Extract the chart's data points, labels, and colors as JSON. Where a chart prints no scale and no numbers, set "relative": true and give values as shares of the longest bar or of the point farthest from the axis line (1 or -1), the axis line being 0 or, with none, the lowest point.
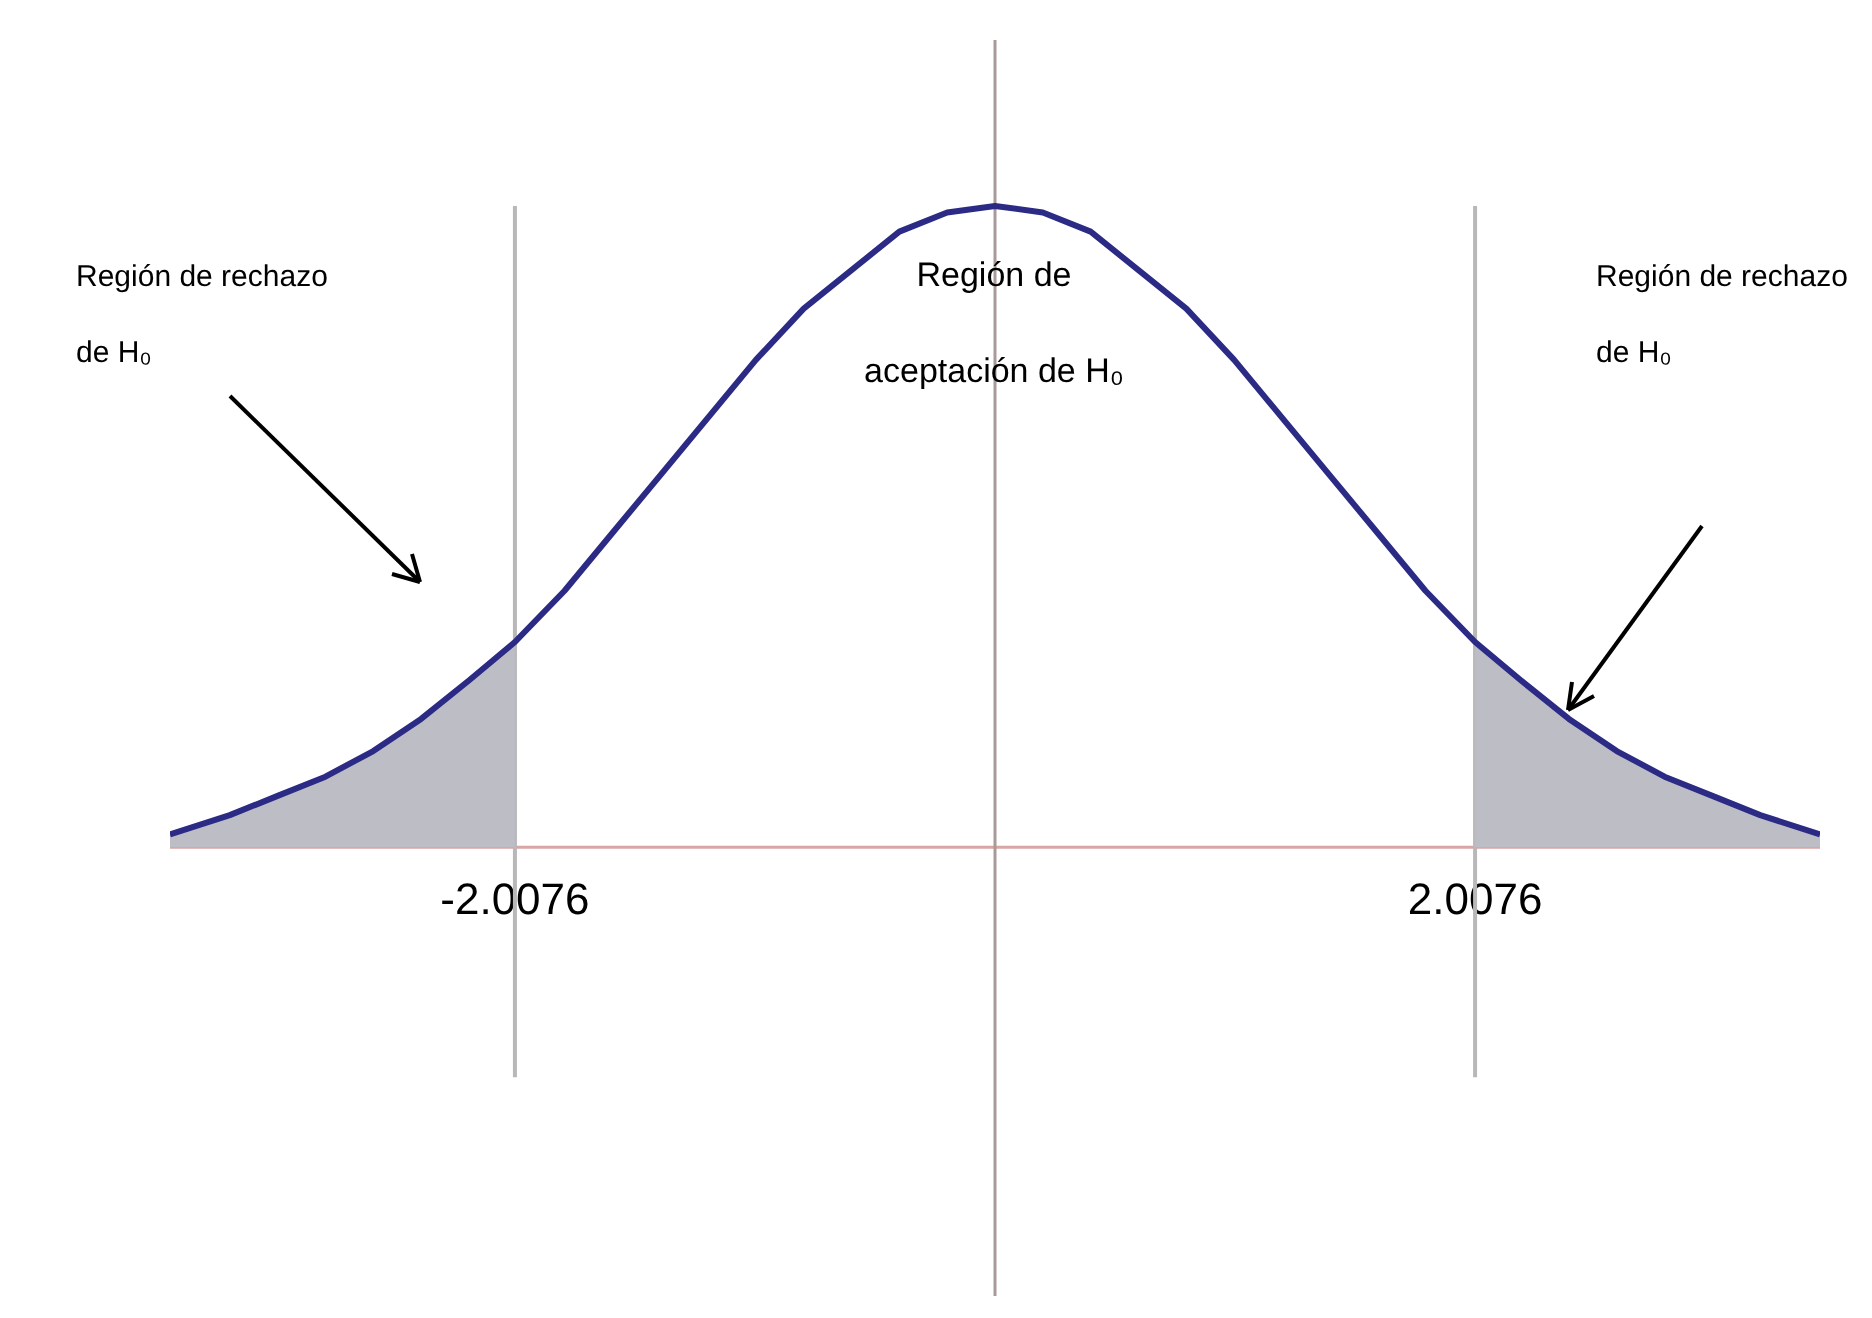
{
  "chart_data": {
    "type": "line",
    "relative": true,
    "xlim": [
      -3.45,
      3.45
    ],
    "tick_labels": "x",
    "legend": false,
    "marker": "none",
    "xticks": [
      {
        "value": -2.0076,
        "label": "-2.0076"
      },
      {
        "value": 2.0076,
        "label": "2.0076"
      }
    ],
    "series": [
      {
        "color": "#2b2b86",
        "x": [
          -3.45,
          -3.2,
          -3.0,
          -2.8,
          -2.6,
          -2.4,
          -2.2,
          -2.0076,
          -1.8,
          -1.6,
          -1.4,
          -1.2,
          -1.0,
          -0.8,
          -0.6,
          -0.4,
          -0.2,
          0,
          0.2,
          0.4,
          0.6,
          0.8,
          1.0,
          1.2,
          1.4,
          1.6,
          1.8,
          2.0076,
          2.2,
          2.4,
          2.6,
          2.8,
          3.0,
          3.2,
          3.45
        ],
        "values": [
          0.02,
          0.05,
          0.08,
          0.11,
          0.15,
          0.2,
          0.26,
          0.32,
          0.4,
          0.49,
          0.58,
          0.67,
          0.76,
          0.84,
          0.9,
          0.96,
          0.99,
          1,
          0.99,
          0.96,
          0.9,
          0.84,
          0.76,
          0.67,
          0.58,
          0.49,
          0.4,
          0.32,
          0.26,
          0.2,
          0.15,
          0.11,
          0.08,
          0.05,
          0.02
        ]
      },
      {
        "type": "area",
        "color": "#bdbdc6",
        "x": [
          -3.45,
          -3.2,
          -3.0,
          -2.8,
          -2.6,
          -2.4,
          -2.2,
          -2.0076
        ],
        "values": [
          0.02,
          0.05,
          0.08,
          0.11,
          0.15,
          0.2,
          0.26,
          0.32
        ]
      },
      {
        "type": "area",
        "color": "#bdbdc6",
        "x": [
          2.0076,
          2.2,
          2.4,
          2.6,
          2.8,
          3.0,
          3.2,
          3.45
        ],
        "values": [
          0.32,
          0.26,
          0.2,
          0.15,
          0.11,
          0.08,
          0.05,
          0.02
        ]
      }
    ],
    "ref_lines": [
      {
        "axis": "x",
        "value": -2.0076,
        "color": "#b8b8b8"
      },
      {
        "axis": "x",
        "value": 2.0076,
        "color": "#b8b8b8"
      }
    ],
    "annotations": [
      "Región de rechazo de H₀",
      "Región de aceptación de H₀",
      "Región de rechazo de H₀"
    ]
  }
}
